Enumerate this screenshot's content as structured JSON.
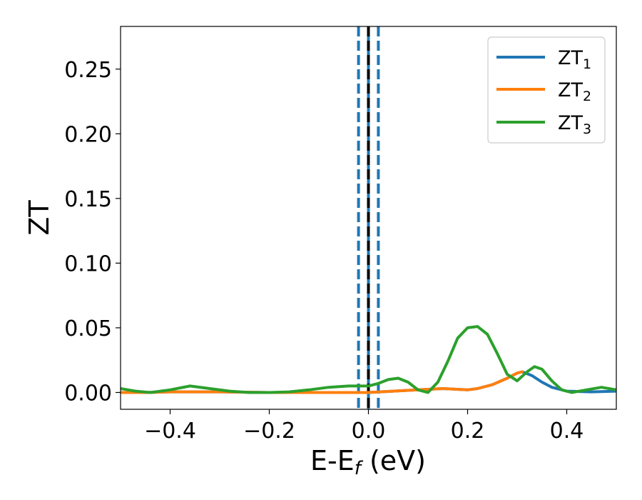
{
  "chart_data": {
    "type": "line",
    "xlabel": "E-E",
    "xlabel_sub": "f",
    "xlabel_unit": " (eV)",
    "ylabel": "ZT",
    "xlim": [
      -0.5,
      0.5
    ],
    "ylim": [
      -0.013,
      0.283
    ],
    "xticks": [
      -0.4,
      -0.2,
      0.0,
      0.2,
      0.4
    ],
    "xtick_labels": [
      "−0.4",
      "−0.2",
      "0.0",
      "0.2",
      "0.4"
    ],
    "yticks": [
      0.0,
      0.05,
      0.1,
      0.15,
      0.2,
      0.25
    ],
    "ytick_labels": [
      "0.00",
      "0.05",
      "0.10",
      "0.15",
      "0.20",
      "0.25"
    ],
    "grid": false,
    "legend_position": "top-right",
    "vlines": [
      {
        "x": -0.02,
        "style": "dashed",
        "color": "#1f77b4"
      },
      {
        "x": 0.0,
        "style": "solid",
        "color": "#1f77b4"
      },
      {
        "x": 0.0,
        "style": "dashed",
        "color": "#000000"
      },
      {
        "x": 0.02,
        "style": "dashed",
        "color": "#1f77b4"
      }
    ],
    "series": [
      {
        "name": "ZT",
        "sub": "1",
        "color": "#1f77b4",
        "x": [
          -0.5,
          -0.45,
          -0.4,
          -0.3,
          -0.2,
          -0.1,
          0.0,
          0.05,
          0.1,
          0.15,
          0.2,
          0.22,
          0.25,
          0.28,
          0.3,
          0.31,
          0.33,
          0.35,
          0.37,
          0.4,
          0.45,
          0.5
        ],
        "values": [
          0.0,
          0.0,
          0.0005,
          0.0005,
          0.0,
          0.0,
          0.0,
          0.001,
          0.002,
          0.003,
          0.002,
          0.003,
          0.006,
          0.011,
          0.015,
          0.016,
          0.013,
          0.008,
          0.004,
          0.001,
          0.0005,
          0.001
        ]
      },
      {
        "name": "ZT",
        "sub": "2",
        "color": "#ff7f0e",
        "x": [
          -0.5,
          -0.45,
          -0.4,
          -0.3,
          -0.2,
          -0.1,
          0.0,
          0.05,
          0.1,
          0.15,
          0.2,
          0.22,
          0.25,
          0.28,
          0.3,
          0.31
        ],
        "values": [
          0.0,
          0.0,
          0.0005,
          0.0005,
          0.0,
          0.0,
          0.0,
          0.001,
          0.002,
          0.003,
          0.002,
          0.003,
          0.006,
          0.011,
          0.015,
          0.016
        ]
      },
      {
        "name": "ZT",
        "sub": "3",
        "color": "#2ca02c",
        "x": [
          -0.5,
          -0.47,
          -0.44,
          -0.4,
          -0.36,
          -0.32,
          -0.28,
          -0.24,
          -0.2,
          -0.16,
          -0.12,
          -0.08,
          -0.04,
          0.0,
          0.02,
          0.04,
          0.06,
          0.08,
          0.1,
          0.12,
          0.14,
          0.16,
          0.18,
          0.2,
          0.22,
          0.24,
          0.26,
          0.28,
          0.3,
          0.32,
          0.335,
          0.35,
          0.37,
          0.39,
          0.41,
          0.44,
          0.47,
          0.5
        ],
        "values": [
          0.003,
          0.001,
          0.0,
          0.002,
          0.005,
          0.003,
          0.001,
          0.0,
          0.0,
          0.0005,
          0.002,
          0.004,
          0.005,
          0.005,
          0.007,
          0.01,
          0.011,
          0.008,
          0.002,
          0.0,
          0.008,
          0.024,
          0.042,
          0.05,
          0.051,
          0.045,
          0.03,
          0.014,
          0.009,
          0.016,
          0.02,
          0.018,
          0.009,
          0.002,
          0.0,
          0.002,
          0.004,
          0.002
        ]
      }
    ]
  }
}
